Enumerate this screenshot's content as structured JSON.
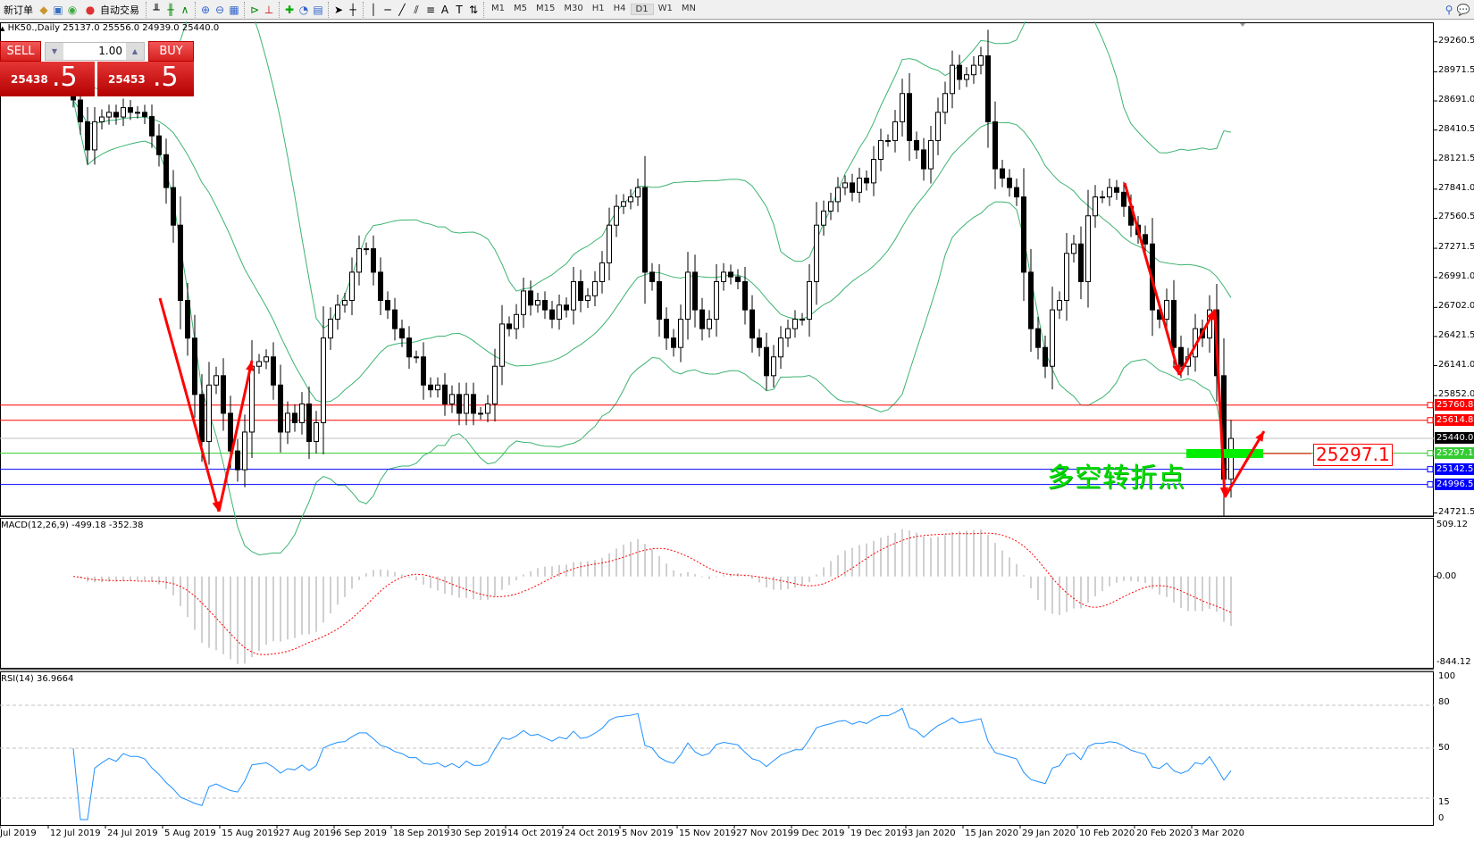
{
  "toolbar": {
    "new_order": "新订单",
    "auto_trading": "自动交易",
    "timeframes": [
      "M1",
      "M5",
      "M15",
      "M30",
      "H1",
      "H4",
      "D1",
      "W1",
      "MN"
    ],
    "active_timeframe": "D1"
  },
  "chart_header": {
    "symbol": "HK50.,Daily",
    "ohlc": "25137.0 25556.0 24939.0 25440.0"
  },
  "one_click": {
    "sell_label": "SELL",
    "buy_label": "BUY",
    "volume": "1.00",
    "sell_main": "25438",
    "sell_frac": ".5",
    "buy_main": "25453",
    "buy_frac": ".5"
  },
  "price_axis": [
    "29260.5",
    "28971.5",
    "28691.0",
    "28410.5",
    "28121.5",
    "27841.0",
    "27560.5",
    "27271.5",
    "26991.0",
    "26702.0",
    "26421.5",
    "26141.0",
    "25852.0",
    "24721.5"
  ],
  "levels": [
    {
      "value": "25760.8",
      "color": "#ff0000"
    },
    {
      "value": "25614.8",
      "color": "#ff0000"
    },
    {
      "value": "25440.0",
      "color": "#000000",
      "line": "#c0c0c0"
    },
    {
      "value": "25297.1",
      "color": "#33cc33"
    },
    {
      "value": "25142.5",
      "color": "#0000ff"
    },
    {
      "value": "24996.5",
      "color": "#0000ff"
    }
  ],
  "annotation": {
    "text": "多空转折点",
    "price_label": "25297.1",
    "color": "#00cc00"
  },
  "macd": {
    "label": "MACD(12,26,9) -499.18 -352.38",
    "axis": [
      "509.12",
      "0.00",
      "-844.12"
    ]
  },
  "rsi": {
    "label": "RSI(14) 36.9664",
    "axis": [
      "100",
      "80",
      "50",
      "15",
      "0"
    ]
  },
  "date_axis": [
    "Jul 2019",
    "12 Jul 2019",
    "24 Jul 2019",
    "5 Aug 2019",
    "15 Aug 2019",
    "27 Aug 2019",
    "6 Sep 2019",
    "18 Sep 2019",
    "30 Sep 2019",
    "14 Oct 2019",
    "24 Oct 2019",
    "5 Nov 2019",
    "15 Nov 2019",
    "27 Nov 2019",
    "9 Dec 2019",
    "19 Dec 2019",
    "3 Jan 2020",
    "15 Jan 2020",
    "29 Jan 2020",
    "10 Feb 2020",
    "20 Feb 2020",
    "3 Mar 2020"
  ],
  "chart_data": {
    "type": "candlestick",
    "symbol": "HK50",
    "timeframe": "Daily",
    "ylim": [
      24721.5,
      29260.5
    ],
    "close": [
      28700,
      28490,
      28219,
      28490,
      28536,
      28581,
      28536,
      28626,
      28581,
      28581,
      28540,
      28354,
      28173,
      27856,
      27494,
      26769,
      26406,
      25863,
      25410,
      25954,
      26044,
      25682,
      25319,
      25138,
      25501,
      26135,
      26180,
      26225,
      25954,
      25501,
      25682,
      25591,
      25772,
      25410,
      25591,
      26407,
      26588,
      26724,
      26769,
      27041,
      27267,
      27267,
      27041,
      26769,
      26678,
      26497,
      26407,
      26225,
      26225,
      25954,
      25908,
      25954,
      25772,
      25863,
      25682,
      25863,
      25682,
      25682,
      25772,
      26135,
      26542,
      26497,
      26633,
      26860,
      26724,
      26769,
      26678,
      26588,
      26724,
      26678,
      26950,
      26769,
      26814,
      26950,
      27131,
      27494,
      27675,
      27720,
      27766,
      27856,
      27041,
      26950,
      26588,
      26407,
      26316,
      26588,
      27041,
      26678,
      26497,
      26588,
      26950,
      27041,
      26996,
      26950,
      26678,
      26407,
      26316,
      26044,
      26225,
      26407,
      26497,
      26588,
      26588,
      26950,
      27494,
      27630,
      27720,
      27856,
      27901,
      27811,
      27947,
      27901,
      28128,
      28309,
      28309,
      28490,
      28762,
      28309,
      28219,
      28037,
      28309,
      28581,
      28762,
      29034,
      28898,
      28943,
      29034,
      29125,
      28490,
      28037,
      27947,
      27856,
      27766,
      27041,
      26497,
      26316,
      26135,
      26678,
      26769,
      27222,
      27313,
      26950,
      27584,
      27766,
      27766,
      27856,
      27811,
      27675,
      27494,
      27403,
      27313,
      26678,
      26588,
      26769,
      26316,
      26135,
      26225,
      26497,
      26407,
      26678,
      26044,
      25047,
      25440
    ],
    "indicators": [
      "Bollinger Bands",
      "MACD(12,26,9)",
      "RSI(14)"
    ]
  }
}
